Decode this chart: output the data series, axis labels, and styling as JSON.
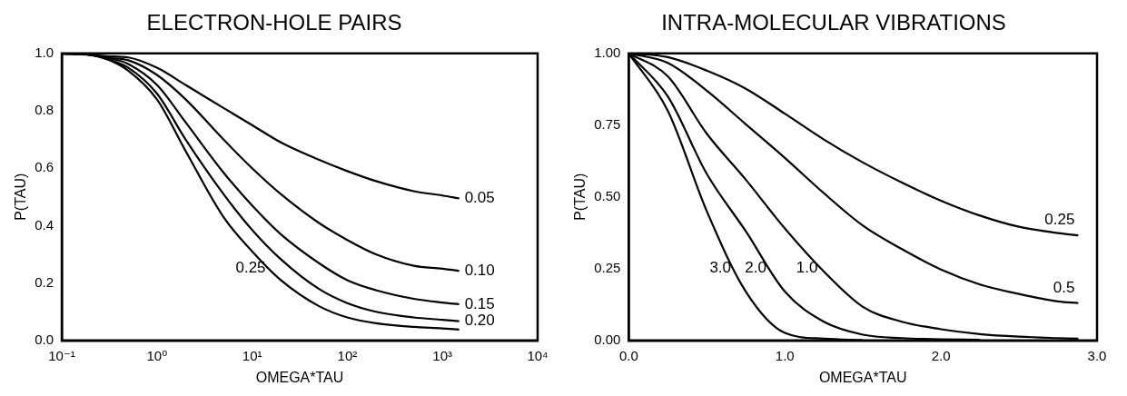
{
  "chart_data": [
    {
      "type": "line",
      "title": "ELECTRON-HOLE PAIRS",
      "xlabel": "OMEGA*TAU",
      "ylabel": "P(TAU)",
      "log": "x",
      "xlim": [
        0.1,
        10000
      ],
      "xticks": [
        {
          "value": 0.1,
          "label": "10⁻¹"
        },
        {
          "value": 1,
          "label": "10⁰"
        },
        {
          "value": 10,
          "label": "10¹"
        },
        {
          "value": 100,
          "label": "10²"
        },
        {
          "value": 1000,
          "label": "10³"
        },
        {
          "value": 10000,
          "label": "10⁴"
        }
      ],
      "ylim": [
        0,
        1
      ],
      "yticks": [
        {
          "value": 0,
          "label": "0.0"
        },
        0.2,
        0.4,
        0.6,
        0.8,
        {
          "value": 1,
          "label": "1.0"
        }
      ],
      "grid": false,
      "legend": false,
      "marker": "none",
      "line_style": "solid",
      "x": [
        0.1,
        0.2,
        0.3,
        0.5,
        1,
        2,
        5,
        10,
        20,
        50,
        100,
        200,
        500,
        1000,
        1500
      ],
      "series": [
        {
          "name": "0.05",
          "color": "#000000",
          "values": [
            1,
            0.995,
            0.99,
            0.986,
            0.95,
            0.89,
            0.81,
            0.75,
            0.69,
            0.63,
            0.59,
            0.555,
            0.52,
            0.505,
            0.495
          ]
        },
        {
          "name": "0.10",
          "color": "#000000",
          "values": [
            1,
            0.995,
            0.985,
            0.976,
            0.925,
            0.84,
            0.7,
            0.6,
            0.51,
            0.41,
            0.35,
            0.3,
            0.26,
            0.25,
            0.242
          ]
        },
        {
          "name": "0.15",
          "color": "#000000",
          "values": [
            1,
            0.995,
            0.985,
            0.963,
            0.89,
            0.76,
            0.585,
            0.47,
            0.37,
            0.27,
            0.21,
            0.175,
            0.145,
            0.132,
            0.126
          ]
        },
        {
          "name": "0.20",
          "color": "#000000",
          "values": [
            1,
            0.995,
            0.98,
            0.95,
            0.86,
            0.7,
            0.51,
            0.385,
            0.283,
            0.18,
            0.13,
            0.1,
            0.08,
            0.072,
            0.067
          ]
        },
        {
          "name": "0.25",
          "color": "#000000",
          "values": [
            1,
            0.995,
            0.98,
            0.94,
            0.84,
            0.66,
            0.43,
            0.31,
            0.21,
            0.12,
            0.08,
            0.06,
            0.047,
            0.042,
            0.038
          ]
        }
      ]
    },
    {
      "type": "line",
      "title": "INTRA-MOLECULAR VIBRATIONS",
      "xlabel": "OMEGA*TAU",
      "ylabel": "P(TAU)",
      "xlim": [
        0,
        3
      ],
      "xticks": [
        {
          "value": 0,
          "label": "0.0"
        },
        {
          "value": 1,
          "label": "1.0"
        },
        {
          "value": 2,
          "label": "2.0"
        },
        {
          "value": 3,
          "label": "3.0"
        }
      ],
      "ylim": [
        0,
        1
      ],
      "yticks": [
        {
          "value": 0,
          "label": "0.00"
        },
        0.25,
        {
          "value": 0.5,
          "label": "0.50"
        },
        0.75,
        {
          "value": 1,
          "label": "1.00"
        }
      ],
      "grid": false,
      "legend": false,
      "marker": "none",
      "line_style": "solid",
      "x": [
        0,
        0.25,
        0.5,
        0.75,
        1,
        1.25,
        1.5,
        1.75,
        2,
        2.25,
        2.5,
        2.75,
        2.88
      ],
      "series": [
        {
          "name": "0.25",
          "color": "#000000",
          "values": [
            1,
            0.987,
            0.94,
            0.877,
            0.79,
            0.7,
            0.62,
            0.55,
            0.487,
            0.435,
            0.396,
            0.374,
            0.366
          ]
        },
        {
          "name": "0.5",
          "color": "#000000",
          "values": [
            1,
            0.967,
            0.87,
            0.753,
            0.636,
            0.513,
            0.4,
            0.318,
            0.247,
            0.195,
            0.162,
            0.136,
            0.13
          ]
        },
        {
          "name": "1.0",
          "color": "#000000",
          "values": [
            1,
            0.92,
            0.72,
            0.56,
            0.39,
            0.24,
            0.117,
            0.065,
            0.039,
            0.022,
            0.013,
            0.008,
            0.006
          ]
        },
        {
          "name": "2.0",
          "color": "#000000",
          "x": [
            0,
            0.25,
            0.5,
            0.75,
            1,
            1.25,
            1.5,
            1.75,
            2,
            2.25
          ],
          "values": [
            1,
            0.85,
            0.58,
            0.38,
            0.17,
            0.065,
            0.02,
            0.008,
            0.004,
            0.002
          ]
        },
        {
          "name": "3.0",
          "color": "#000000",
          "x": [
            0,
            0.25,
            0.5,
            0.75,
            1,
            1.25,
            1.5
          ],
          "values": [
            1,
            0.8,
            0.45,
            0.17,
            0.026,
            0.006,
            0.001
          ]
        }
      ]
    }
  ]
}
